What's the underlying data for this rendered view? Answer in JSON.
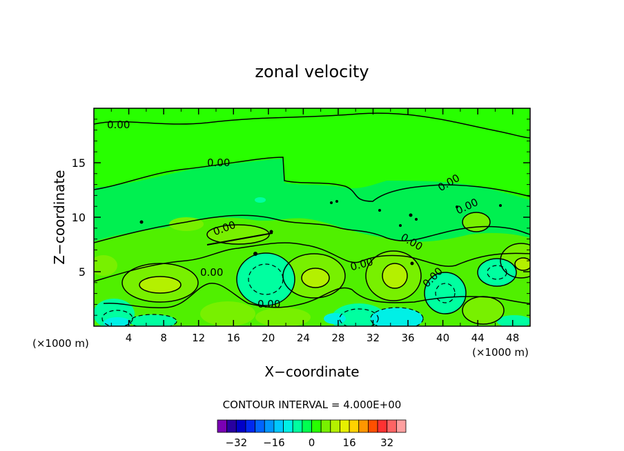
{
  "chart_data": {
    "type": "contour",
    "title": "zonal velocity",
    "xlabel": "X−coordinate",
    "ylabel": "Z−coordinate",
    "x_unit_left": "(×1000 m)",
    "x_unit_right": "(×1000 m)",
    "xlim": [
      0,
      50
    ],
    "ylim": [
      0,
      20
    ],
    "x_ticks": [
      4,
      8,
      12,
      16,
      20,
      24,
      28,
      32,
      36,
      40,
      44,
      48
    ],
    "x_tick_labels": [
      "4",
      "8",
      "12",
      "16",
      "20",
      "24",
      "28",
      "32",
      "36",
      "40",
      "44",
      "48"
    ],
    "y_ticks": [
      5,
      10,
      15
    ],
    "y_tick_labels": [
      "5",
      "10",
      "15"
    ],
    "contour_interval_text": "CONTOUR INTERVAL = 4.000E+00",
    "contour_labels": [
      "0.00",
      "0.00",
      "0.00",
      "0.00",
      "0.00",
      "0.00",
      "0.00",
      "0.00",
      "0.00",
      "0.00",
      "0.00"
    ],
    "colorbar": {
      "levels": [
        -36,
        -32,
        -28,
        -24,
        -20,
        -16,
        -12,
        -8,
        -4,
        0,
        4,
        8,
        12,
        16,
        20,
        24,
        28,
        32,
        36
      ],
      "colors": [
        "#7a00b4",
        "#2800a0",
        "#0000c8",
        "#0028f0",
        "#0064ff",
        "#0096ff",
        "#00c8ff",
        "#00f0e6",
        "#00ffa0",
        "#00ff50",
        "#28ff00",
        "#78f000",
        "#b4f000",
        "#e6f000",
        "#ffd200",
        "#ff9600",
        "#ff5000",
        "#ff3232",
        "#ff6464",
        "#ffa0a0"
      ],
      "tick_values": [
        -32,
        -16,
        0,
        16,
        32
      ],
      "tick_labels": [
        "−32",
        "−16",
        "0",
        "16",
        "32"
      ]
    }
  }
}
